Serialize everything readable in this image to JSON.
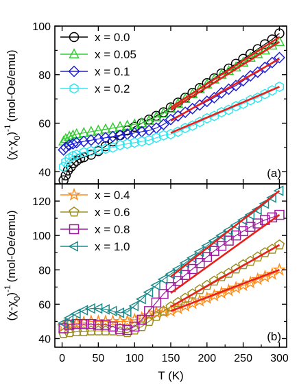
{
  "chart_data": [
    {
      "panel_label": "(a)",
      "type": "scatter",
      "ylabel": "(χ-χ0)⁻¹ (mol-Oe/emu)",
      "xlim": [
        -10,
        310
      ],
      "ylim": [
        35,
        100
      ],
      "yticks": [
        40,
        60,
        80,
        100
      ],
      "minor_yticks": [
        50,
        70,
        90
      ],
      "xticks": [
        0,
        50,
        100,
        150,
        200,
        250,
        300
      ],
      "legend_position": "top-left",
      "series": [
        {
          "name": "x = 0.0",
          "marker": "circle",
          "color": "#000000",
          "x": [
            2,
            5,
            8,
            12,
            16,
            20,
            25,
            30,
            40,
            50,
            60,
            70,
            80,
            90,
            100,
            110,
            120,
            130,
            140,
            150,
            160,
            170,
            180,
            190,
            200,
            210,
            220,
            230,
            240,
            250,
            260,
            270,
            280,
            290,
            300
          ],
          "y": [
            36.5,
            38.5,
            40.5,
            42,
            43.5,
            44.5,
            45.5,
            46,
            47,
            48.5,
            50.5,
            52.5,
            55,
            57,
            58.5,
            60,
            61.5,
            63,
            64.5,
            66.5,
            68.5,
            70.5,
            72.5,
            74.5,
            76.5,
            78.5,
            80.5,
            82.5,
            84.5,
            86.5,
            88.5,
            90.5,
            92.5,
            94.5,
            97
          ]
        },
        {
          "name": "x = 0.05",
          "marker": "triangle-up",
          "color": "#33cc33",
          "x": [
            2,
            5,
            10,
            15,
            20,
            30,
            40,
            50,
            60,
            70,
            80,
            90,
            100,
            110,
            120,
            130,
            140,
            150,
            160,
            170,
            180,
            190,
            200,
            210,
            220,
            230,
            240,
            250,
            260,
            270,
            280,
            290,
            300
          ],
          "y": [
            52.5,
            53.5,
            54.5,
            55,
            55.5,
            56,
            56.5,
            57,
            57.5,
            58,
            58.5,
            59,
            59.5,
            60,
            61,
            62.5,
            64,
            66,
            68,
            70,
            72,
            74,
            76,
            78,
            80,
            81.5,
            83,
            85,
            87,
            88.5,
            90,
            92,
            93.5
          ]
        },
        {
          "name": "x = 0.1",
          "marker": "diamond",
          "color": "#1f1fd6",
          "x": [
            2,
            5,
            10,
            15,
            20,
            30,
            40,
            50,
            60,
            70,
            80,
            90,
            100,
            110,
            120,
            130,
            140,
            150,
            160,
            170,
            180,
            190,
            200,
            210,
            220,
            230,
            240,
            250,
            260,
            270,
            280,
            290,
            300
          ],
          "y": [
            49,
            50,
            51,
            51.5,
            52,
            52.5,
            53,
            53.5,
            54,
            54.5,
            55,
            55.5,
            56,
            56.5,
            57,
            58,
            59.5,
            61.5,
            63,
            64.5,
            66,
            67.5,
            69,
            70.5,
            72.5,
            74,
            75.5,
            77.5,
            79.5,
            81,
            83,
            85,
            87
          ]
        },
        {
          "name": "x = 0.2",
          "marker": "hexagon",
          "color": "#33e6f0",
          "x": [
            2,
            5,
            10,
            15,
            20,
            30,
            40,
            50,
            60,
            70,
            80,
            90,
            100,
            110,
            120,
            130,
            140,
            150,
            160,
            170,
            180,
            190,
            200,
            210,
            220,
            230,
            240,
            250,
            260,
            270,
            280,
            290,
            300
          ],
          "y": [
            42,
            44,
            45.5,
            46.5,
            47,
            48,
            48.5,
            49,
            49.5,
            50,
            51,
            51.5,
            52,
            52.5,
            53,
            54,
            55,
            55.5,
            56.5,
            58,
            59,
            60.5,
            62,
            63,
            64.5,
            65.5,
            67,
            68,
            69.5,
            70.5,
            72,
            73.5,
            75
          ]
        }
      ],
      "fits": [
        {
          "x": [
            150,
            300
          ],
          "y": [
            66.5,
            95.5
          ]
        },
        {
          "x": [
            150,
            300
          ],
          "y": [
            65.5,
            93.5
          ]
        },
        {
          "x": [
            150,
            300
          ],
          "y": [
            61,
            86.5
          ]
        },
        {
          "x": [
            150,
            300
          ],
          "y": [
            56,
            75
          ]
        }
      ],
      "fit_color": "#e8201c"
    },
    {
      "panel_label": "(b)",
      "type": "scatter",
      "ylabel": "(χ-χ0)⁻¹ (mol-Oe/emu)",
      "xlabel": "T (K)",
      "xlim": [
        -10,
        310
      ],
      "ylim": [
        35,
        130
      ],
      "yticks": [
        40,
        60,
        80,
        100,
        120
      ],
      "minor_yticks": [
        50,
        70,
        90,
        110
      ],
      "xticks": [
        0,
        50,
        100,
        150,
        200,
        250,
        300
      ],
      "minor_xticks": [
        25,
        75,
        125,
        175,
        225,
        275
      ],
      "legend_position": "top-left",
      "series": [
        {
          "name": "x = 0.4",
          "marker": "star",
          "color": "#ff8c1a",
          "x": [
            2,
            10,
            20,
            30,
            40,
            50,
            60,
            70,
            80,
            90,
            100,
            110,
            120,
            130,
            140,
            150,
            160,
            170,
            180,
            190,
            200,
            210,
            220,
            230,
            240,
            250,
            260,
            270,
            280,
            290,
            300
          ],
          "y": [
            47,
            48.5,
            49,
            49.5,
            50,
            50,
            50,
            50,
            50,
            50,
            51,
            52,
            53.5,
            55,
            55.5,
            56,
            57.5,
            59,
            60.5,
            62,
            63.5,
            65,
            66.5,
            68,
            69.5,
            71,
            72.5,
            74.5,
            76,
            77.5,
            80
          ]
        },
        {
          "name": "x = 0.6",
          "marker": "pentagon",
          "color": "#9c8f1f",
          "x": [
            2,
            10,
            20,
            30,
            40,
            50,
            60,
            70,
            80,
            90,
            100,
            110,
            120,
            130,
            140,
            150,
            160,
            170,
            180,
            190,
            200,
            210,
            220,
            230,
            240,
            250,
            260,
            270,
            280,
            290,
            300
          ],
          "y": [
            43,
            43.5,
            44,
            44,
            44.5,
            44.5,
            44.5,
            44.5,
            44,
            43.5,
            45,
            47,
            50,
            53,
            56,
            58.5,
            61,
            63.5,
            66,
            68.5,
            71,
            73.5,
            76,
            78,
            80.5,
            83,
            85,
            87.5,
            90,
            92,
            94.5
          ]
        },
        {
          "name": "x = 0.8",
          "marker": "square",
          "color": "#9e1a9e",
          "x": [
            2,
            10,
            20,
            30,
            40,
            50,
            60,
            70,
            80,
            90,
            100,
            110,
            120,
            130,
            140,
            150,
            160,
            170,
            180,
            190,
            200,
            210,
            220,
            230,
            240,
            250,
            260,
            270,
            280,
            290,
            300
          ],
          "y": [
            46,
            48,
            48.5,
            48.5,
            48.5,
            48,
            48,
            47,
            45.5,
            45,
            47,
            51,
            56,
            61,
            66,
            70,
            73.5,
            77,
            80.5,
            84,
            87.5,
            91,
            94,
            97,
            100,
            102.5,
            105,
            107,
            109,
            110.5,
            112
          ]
        },
        {
          "name": "x = 1.0",
          "marker": "triangle-left",
          "color": "#1a8a8a",
          "x": [
            2,
            10,
            20,
            30,
            40,
            50,
            60,
            70,
            80,
            90,
            100,
            110,
            120,
            130,
            140,
            150,
            160,
            170,
            180,
            190,
            200,
            210,
            220,
            230,
            240,
            250,
            260,
            270,
            280,
            290,
            300
          ],
          "y": [
            49,
            52,
            54.5,
            56.5,
            57.5,
            57.5,
            57,
            56,
            55,
            55.5,
            59,
            63,
            67,
            71,
            74.5,
            77.5,
            80.5,
            84,
            87,
            90.5,
            94,
            97,
            100,
            103,
            106,
            109,
            112,
            115,
            118.5,
            122,
            126
          ]
        }
      ],
      "fits": [
        {
          "x": [
            150,
            300
          ],
          "y": [
            56,
            80
          ]
        },
        {
          "x": [
            150,
            300
          ],
          "y": [
            58.5,
            94.5
          ]
        },
        {
          "x": [
            150,
            300
          ],
          "y": [
            66.5,
            112
          ]
        },
        {
          "x": [
            150,
            300
          ],
          "y": [
            76,
            126
          ]
        }
      ],
      "fit_color": "#e8201c"
    }
  ]
}
